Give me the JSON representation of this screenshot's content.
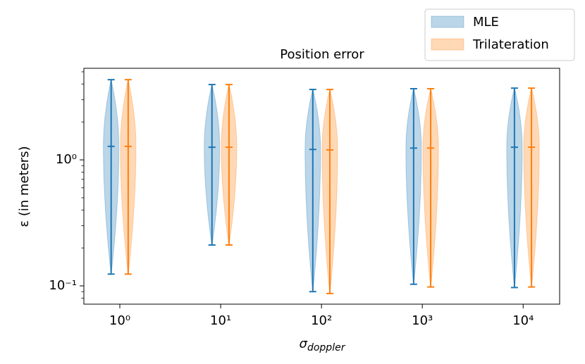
{
  "chart_data": {
    "type": "violin",
    "title": "Position error",
    "x_label": "σ",
    "x_label_subscript": "doppler",
    "y_label": "ε (in meters)",
    "x_scale": "log",
    "y_scale": "log",
    "xlim": [
      0.44,
      23000
    ],
    "ylim": [
      0.0716,
      5.33
    ],
    "xticks": [
      {
        "value": 1,
        "label": "10⁰"
      },
      {
        "value": 10,
        "label": "10¹"
      },
      {
        "value": 100,
        "label": "10²"
      },
      {
        "value": 1000,
        "label": "10³"
      },
      {
        "value": 10000,
        "label": "10⁴"
      }
    ],
    "yticks": [
      {
        "value": 0.1,
        "label": "10⁻¹"
      },
      {
        "value": 1,
        "label": "10⁰"
      }
    ],
    "legend": "upper right",
    "series": [
      {
        "name": "MLE",
        "color": "#1f77b4",
        "x": [
          0.82,
          8.2,
          82,
          820,
          8200
        ],
        "mins": [
          0.124,
          0.211,
          0.09,
          0.103,
          0.097
        ],
        "medians": [
          1.28,
          1.26,
          1.21,
          1.24,
          1.26
        ],
        "maxs": [
          4.33,
          3.96,
          3.62,
          3.67,
          3.71
        ]
      },
      {
        "name": "Trilateration",
        "color": "#ff7f0e",
        "x": [
          1.21,
          12.1,
          121,
          1210,
          12100
        ],
        "mins": [
          0.124,
          0.211,
          0.087,
          0.098,
          0.098
        ],
        "medians": [
          1.28,
          1.26,
          1.2,
          1.24,
          1.26
        ],
        "maxs": [
          4.33,
          3.96,
          3.62,
          3.67,
          3.71
        ]
      }
    ]
  }
}
